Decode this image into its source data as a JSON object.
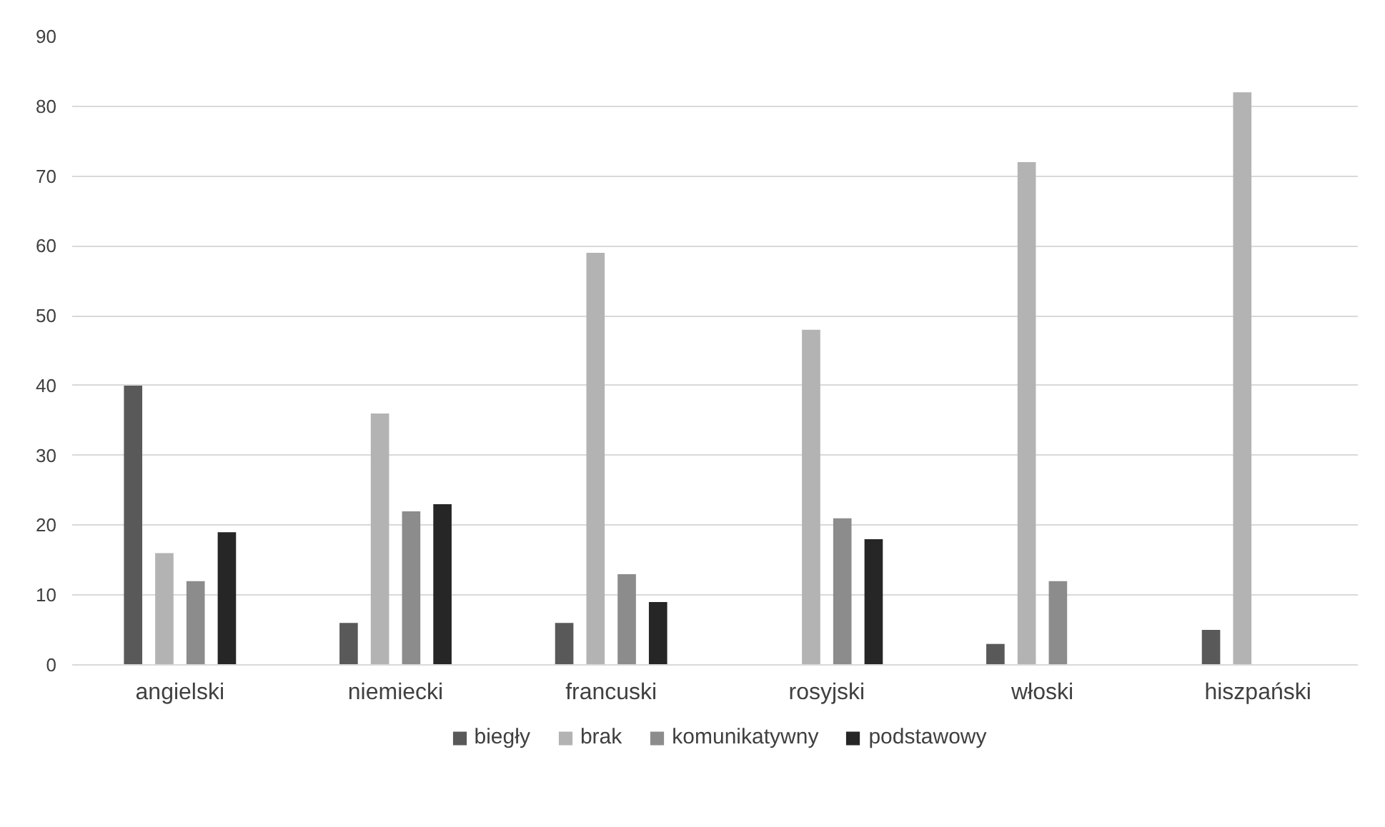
{
  "chart_data": {
    "type": "bar",
    "categories": [
      "angielski",
      "niemiecki",
      "francuski",
      "rosyjski",
      "włoski",
      "hiszpański"
    ],
    "series": [
      {
        "name": "biegły",
        "color": "#595959",
        "values": [
          40,
          6,
          6,
          null,
          3,
          5
        ]
      },
      {
        "name": "brak",
        "color": "#b3b3b3",
        "values": [
          16,
          36,
          59,
          48,
          72,
          82
        ]
      },
      {
        "name": "komunikatywny",
        "color": "#8c8c8c",
        "values": [
          12,
          22,
          13,
          21,
          12,
          null
        ]
      },
      {
        "name": "podstawowy",
        "color": "#262626",
        "values": [
          19,
          23,
          9,
          18,
          null,
          null
        ]
      }
    ],
    "ylim": [
      0,
      90
    ],
    "yticks": [
      0,
      10,
      20,
      30,
      40,
      50,
      60,
      70,
      80,
      90
    ],
    "grid": "y",
    "legend": "bottom"
  }
}
